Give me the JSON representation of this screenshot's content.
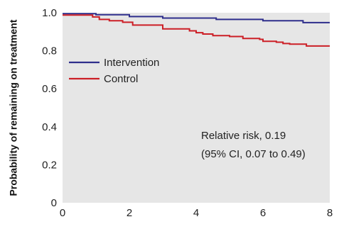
{
  "chart_data": {
    "type": "line",
    "title": "",
    "xlabel": "",
    "ylabel": "Probability of remaining on treatment",
    "xlim": [
      0,
      8
    ],
    "ylim": [
      0,
      1.0
    ],
    "xticks": [
      "0",
      "2",
      "4",
      "6",
      "8"
    ],
    "yticks": [
      "0",
      "0.2",
      "0.4",
      "0.6",
      "0.8",
      "1.0"
    ],
    "grid": false,
    "background": "#e6e6e6",
    "legend_position": "upper-left",
    "series": [
      {
        "name": "Intervention",
        "color": "#2e2e8c",
        "step": true,
        "x": [
          0,
          1.0,
          2.0,
          3.0,
          4.6,
          6.0,
          7.2,
          8
        ],
        "y": [
          0.995,
          0.99,
          0.98,
          0.972,
          0.965,
          0.958,
          0.948,
          0.948
        ]
      },
      {
        "name": "Control",
        "color": "#cc1f26",
        "step": true,
        "x": [
          0,
          0.9,
          1.1,
          1.4,
          1.8,
          2.1,
          3.0,
          3.8,
          4.0,
          4.2,
          4.5,
          5.0,
          5.4,
          5.9,
          6.0,
          6.4,
          6.6,
          6.8,
          7.3,
          8
        ],
        "y": [
          0.988,
          0.978,
          0.965,
          0.958,
          0.95,
          0.935,
          0.915,
          0.905,
          0.895,
          0.888,
          0.88,
          0.875,
          0.865,
          0.86,
          0.85,
          0.845,
          0.838,
          0.835,
          0.825,
          0.825
        ]
      }
    ],
    "annotation": {
      "line1": "Relative risk, 0.19",
      "line2": "(95% CI, 0.07 to 0.49)"
    }
  }
}
